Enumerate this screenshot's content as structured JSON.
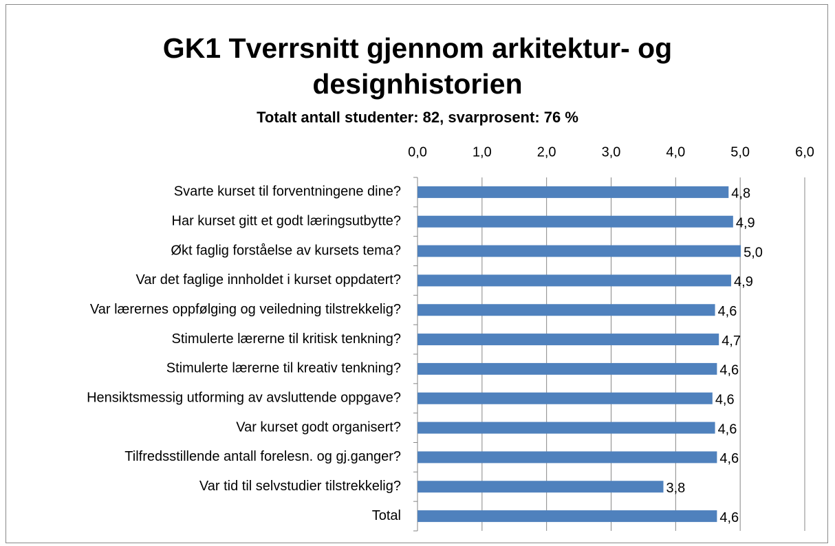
{
  "chart_data": {
    "type": "bar",
    "orientation": "horizontal",
    "title": "GK1 Tverrsnitt gjennom arkitektur- og designhistorien",
    "subtitle": "Totalt antall studenter: 82, svarprosent: 76 %",
    "categories": [
      "Svarte kurset til forventningene dine?",
      "Har kurset gitt et godt læringsutbytte?",
      "Økt faglig forståelse av kursets tema?",
      "Var det faglige innholdet i kurset oppdatert?",
      "Var lærernes oppfølging og veiledning tilstrekkelig?",
      "Stimulerte lærerne til kritisk tenkning?",
      "Stimulerte lærerne til kreativ tenkning?",
      "Hensiktsmessig utforming av avsluttende oppgave?",
      "Var kurset godt organisert?",
      "Tilfredsstillende antall forelesn. og gj.ganger?",
      "Var tid til selvstudier tilstrekkelig?",
      "Total"
    ],
    "values": [
      4.82,
      4.89,
      5.01,
      4.86,
      4.61,
      4.67,
      4.64,
      4.57,
      4.61,
      4.64,
      3.81,
      4.64
    ],
    "value_labels": [
      "4,8",
      "4,9",
      "5,0",
      "4,9",
      "4,6",
      "4,7",
      "4,6",
      "4,6",
      "4,6",
      "4,6",
      "3,8",
      "4,6"
    ],
    "color": "#4f81bd",
    "xlim": [
      0,
      6
    ],
    "xticks": [
      {
        "value": 0,
        "label": "0,0"
      },
      {
        "value": 1,
        "label": "1,0"
      },
      {
        "value": 2,
        "label": "2,0"
      },
      {
        "value": 3,
        "label": "3,0"
      },
      {
        "value": 4,
        "label": "4,0"
      },
      {
        "value": 5,
        "label": "5,0"
      },
      {
        "value": 6,
        "label": "6,0"
      }
    ],
    "grid": true
  }
}
